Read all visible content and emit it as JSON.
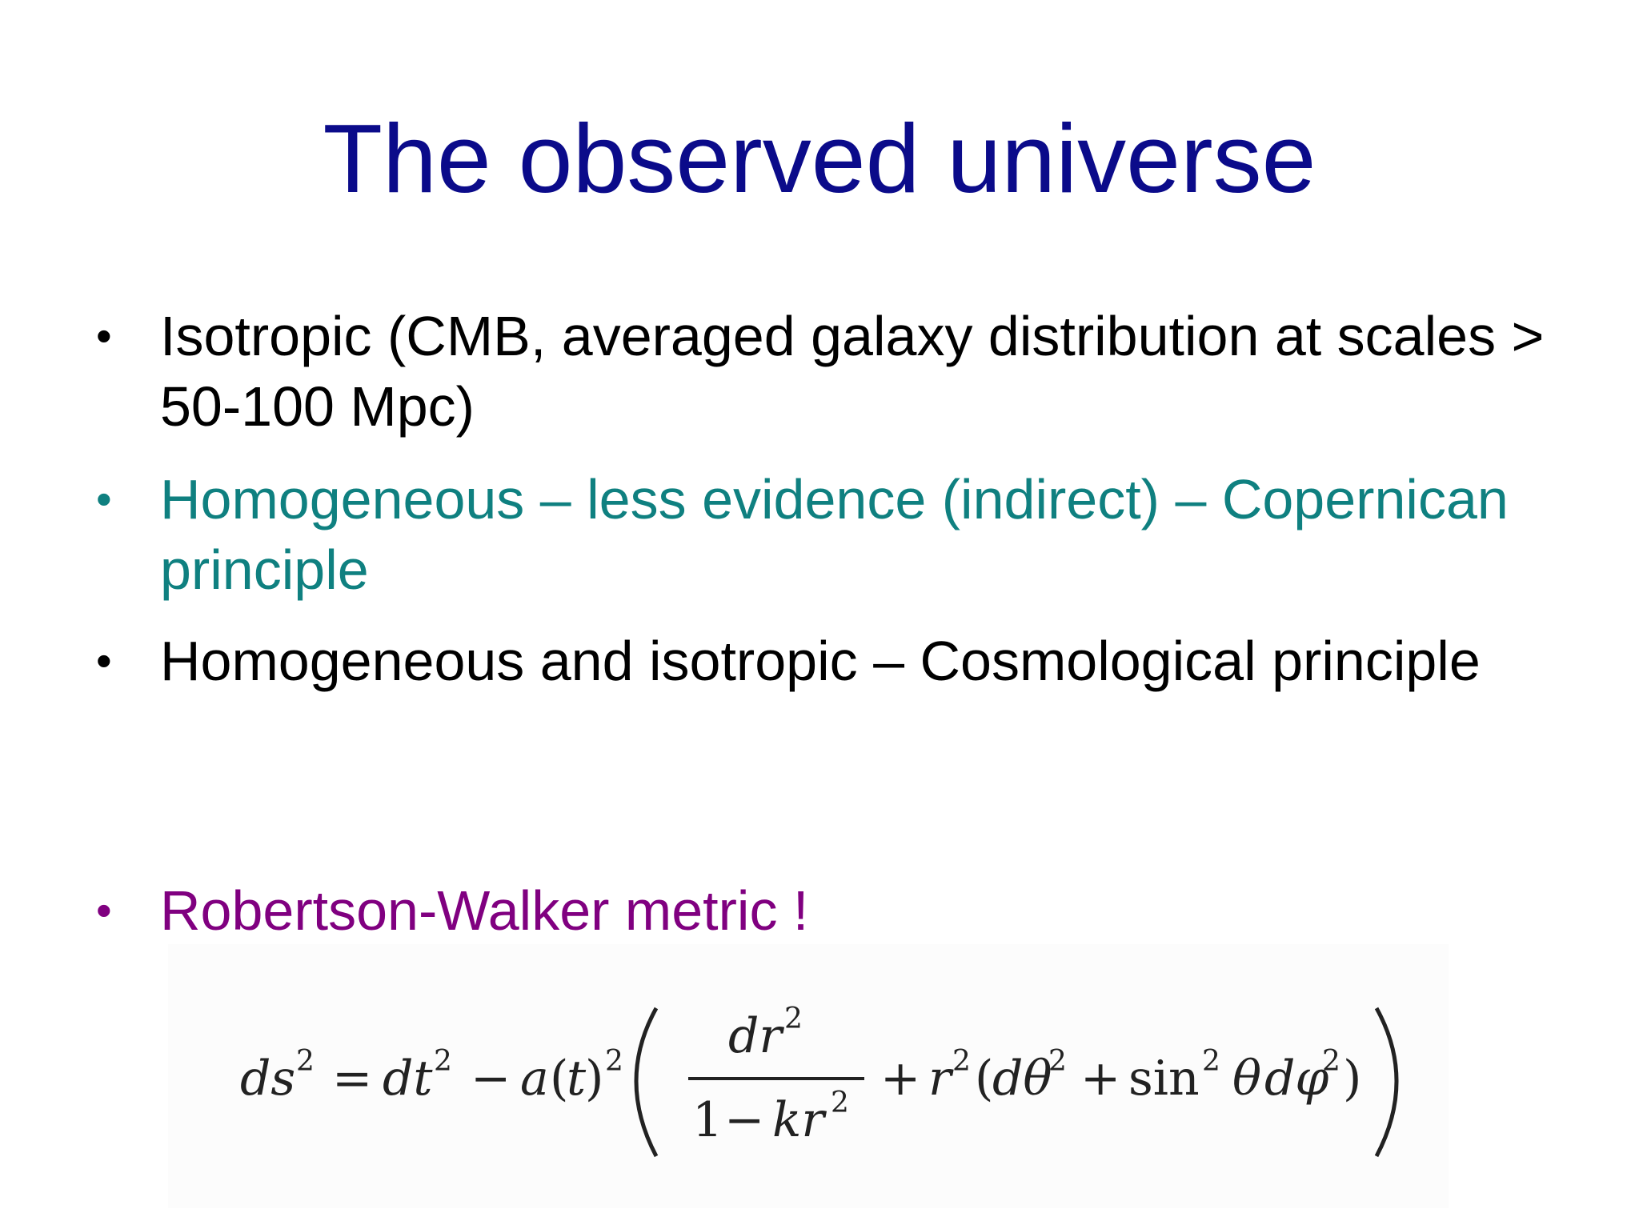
{
  "slide": {
    "title": "The observed universe",
    "bullets": [
      {
        "marker": "•",
        "text": "Isotropic (CMB, averaged galaxy distribution at scales > 50-100 Mpc)",
        "color": "#000000"
      },
      {
        "marker": "•",
        "text": "Homogeneous – less evidence (indirect) – Copernican principle",
        "color": "#0f8080"
      },
      {
        "marker": "•",
        "text": "Homogeneous and isotropic – Cosmological principle",
        "color": "#000000"
      },
      {
        "marker": "•",
        "text": "Robertson-Walker metric !",
        "color": "#800080"
      }
    ],
    "formula": {
      "ds": "ds",
      "dt": "dt",
      "a": "a",
      "t": "t",
      "dr": "dr",
      "one": "1",
      "kr": "kr",
      "r": "r",
      "dtheta": "dθ",
      "sin": "sin",
      "theta": "θ",
      "dphi": "dφ",
      "exp": "2",
      "equals": "=",
      "minus": "−",
      "plus": "+"
    }
  }
}
